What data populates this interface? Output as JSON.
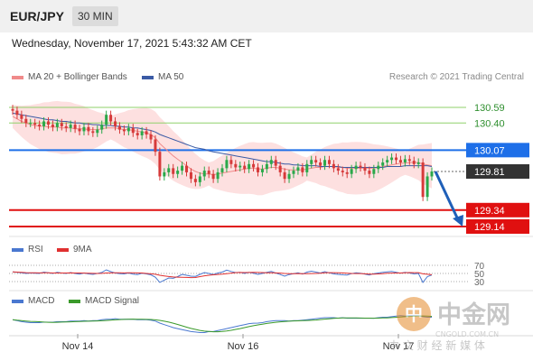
{
  "header": {
    "pair": "EUR/JPY",
    "timeframe": "30 MIN",
    "datetime": "Wednesday, November 17, 2021 5:43:32 AM CET"
  },
  "legend": {
    "ma20_label": "MA 20 + Bollinger Bands",
    "ma50_label": "MA 50",
    "copyright": "Research © 2021 Trading Central"
  },
  "colors": {
    "candle_up": "#2aa84a",
    "candle_down": "#d63a3a",
    "ma20": "#f08a8a",
    "ma50": "#3b5ba5",
    "bollinger_fill": "#fde0e0",
    "resistance_green": "#8fd16a",
    "pivot_blue": "#1e6fe8",
    "support_red": "#e01010",
    "current_price_bg": "#333333",
    "rsi_line": "#4a78d0",
    "rsi_ma": "#e03030",
    "macd_line": "#4a78d0",
    "macd_signal": "#3a9a2a",
    "arrow": "#1f5fb8"
  },
  "chart_data": {
    "type": "candlestick",
    "title": "EUR/JPY",
    "timeframe": "30 MIN",
    "x_ticks": [
      "Nov 14",
      "Nov 16",
      "Nov 17"
    ],
    "price_levels": [
      {
        "value": 130.59,
        "label": "130.59",
        "kind": "resistance",
        "color": "#8fd16a"
      },
      {
        "value": 130.4,
        "label": "130.40",
        "kind": "resistance",
        "color": "#8fd16a"
      },
      {
        "value": 130.07,
        "label": "130.07",
        "kind": "pivot",
        "color": "#1e6fe8"
      },
      {
        "value": 129.81,
        "label": "129.81",
        "kind": "current",
        "color": "#333333"
      },
      {
        "value": 129.34,
        "label": "129.34",
        "kind": "support",
        "color": "#e01010"
      },
      {
        "value": 129.14,
        "label": "129.14",
        "kind": "support",
        "color": "#e01010"
      }
    ],
    "closes": [
      130.55,
      130.5,
      130.45,
      130.4,
      130.4,
      130.38,
      130.36,
      130.42,
      130.38,
      130.35,
      130.4,
      130.36,
      130.34,
      130.38,
      130.33,
      130.3,
      130.35,
      130.3,
      130.28,
      130.32,
      130.38,
      130.5,
      130.42,
      130.36,
      130.32,
      130.3,
      130.34,
      130.28,
      130.25,
      130.3,
      130.26,
      130.2,
      130.05,
      129.75,
      129.8,
      129.85,
      129.78,
      129.82,
      129.88,
      129.8,
      129.72,
      129.68,
      129.75,
      129.82,
      129.78,
      129.72,
      129.8,
      129.85,
      129.95,
      129.9,
      129.86,
      129.88,
      129.84,
      129.9,
      129.86,
      129.8,
      129.84,
      129.9,
      129.95,
      129.88,
      129.8,
      129.72,
      129.78,
      129.82,
      129.86,
      129.8,
      129.9,
      129.95,
      129.92,
      129.88,
      129.95,
      129.9,
      129.85,
      129.82,
      129.8,
      129.78,
      129.84,
      129.88,
      129.86,
      129.82,
      129.78,
      129.84,
      129.88,
      129.92,
      129.95,
      129.98,
      129.95,
      129.92,
      129.96,
      129.94,
      129.9,
      129.92,
      129.5,
      129.75,
      129.81
    ],
    "ma20": [
      130.48,
      130.45,
      130.42,
      130.4,
      130.38,
      130.37,
      130.36,
      130.36,
      130.35,
      130.35,
      130.35,
      130.34,
      130.34,
      130.34,
      130.33,
      130.33,
      130.33,
      130.32,
      130.32,
      130.32,
      130.33,
      130.34,
      130.34,
      130.34,
      130.33,
      130.32,
      130.32,
      130.31,
      130.3,
      130.29,
      130.28,
      130.26,
      130.22,
      130.15,
      130.1,
      130.05,
      130.0,
      129.96,
      129.92,
      129.88,
      129.84,
      129.81,
      129.79,
      129.78,
      129.78,
      129.77,
      129.78,
      129.79,
      129.8,
      129.81,
      129.82,
      129.83,
      129.84,
      129.85,
      129.85,
      129.84,
      129.84,
      129.85,
      129.86,
      129.86,
      129.85,
      129.84,
      129.83,
      129.83,
      129.83,
      129.83,
      129.84,
      129.85,
      129.86,
      129.86,
      129.87,
      129.87,
      129.87,
      129.86,
      129.86,
      129.85,
      129.85,
      129.85,
      129.85,
      129.85,
      129.85,
      129.85,
      129.86,
      129.87,
      129.88,
      129.89,
      129.9,
      129.91,
      129.91,
      129.92,
      129.92,
      129.92,
      129.9,
      129.89,
      129.88
    ],
    "ma50": [
      130.52,
      130.51,
      130.5,
      130.49,
      130.48,
      130.47,
      130.46,
      130.45,
      130.44,
      130.44,
      130.43,
      130.42,
      130.42,
      130.41,
      130.4,
      130.4,
      130.39,
      130.39,
      130.38,
      130.38,
      130.37,
      130.37,
      130.37,
      130.36,
      130.36,
      130.35,
      130.35,
      130.34,
      130.34,
      130.33,
      130.32,
      130.31,
      130.29,
      130.26,
      130.24,
      130.22,
      130.2,
      130.18,
      130.16,
      130.14,
      130.12,
      130.1,
      130.09,
      130.08,
      130.06,
      130.05,
      130.04,
      130.03,
      130.02,
      130.01,
      130.0,
      129.99,
      129.98,
      129.97,
      129.96,
      129.95,
      129.94,
      129.93,
      129.93,
      129.92,
      129.91,
      129.9,
      129.9,
      129.89,
      129.89,
      129.88,
      129.88,
      129.88,
      129.88,
      129.87,
      129.87,
      129.87,
      129.87,
      129.87,
      129.86,
      129.86,
      129.86,
      129.86,
      129.86,
      129.86,
      129.86,
      129.86,
      129.86,
      129.86,
      129.87,
      129.87,
      129.87,
      129.87,
      129.88,
      129.88,
      129.88,
      129.88,
      129.88,
      129.88,
      129.87
    ],
    "rsi": {
      "levels": [
        70,
        50,
        30
      ],
      "legend": [
        "RSI",
        "9MA"
      ]
    },
    "macd": {
      "legend": [
        "MACD",
        "MACD Signal"
      ]
    }
  },
  "watermark": {
    "logo_glyph": "中",
    "name": "中金网",
    "url": "CNGOLD.COM.CN",
    "slogan": "中 文 财 经 新 媒 体"
  }
}
